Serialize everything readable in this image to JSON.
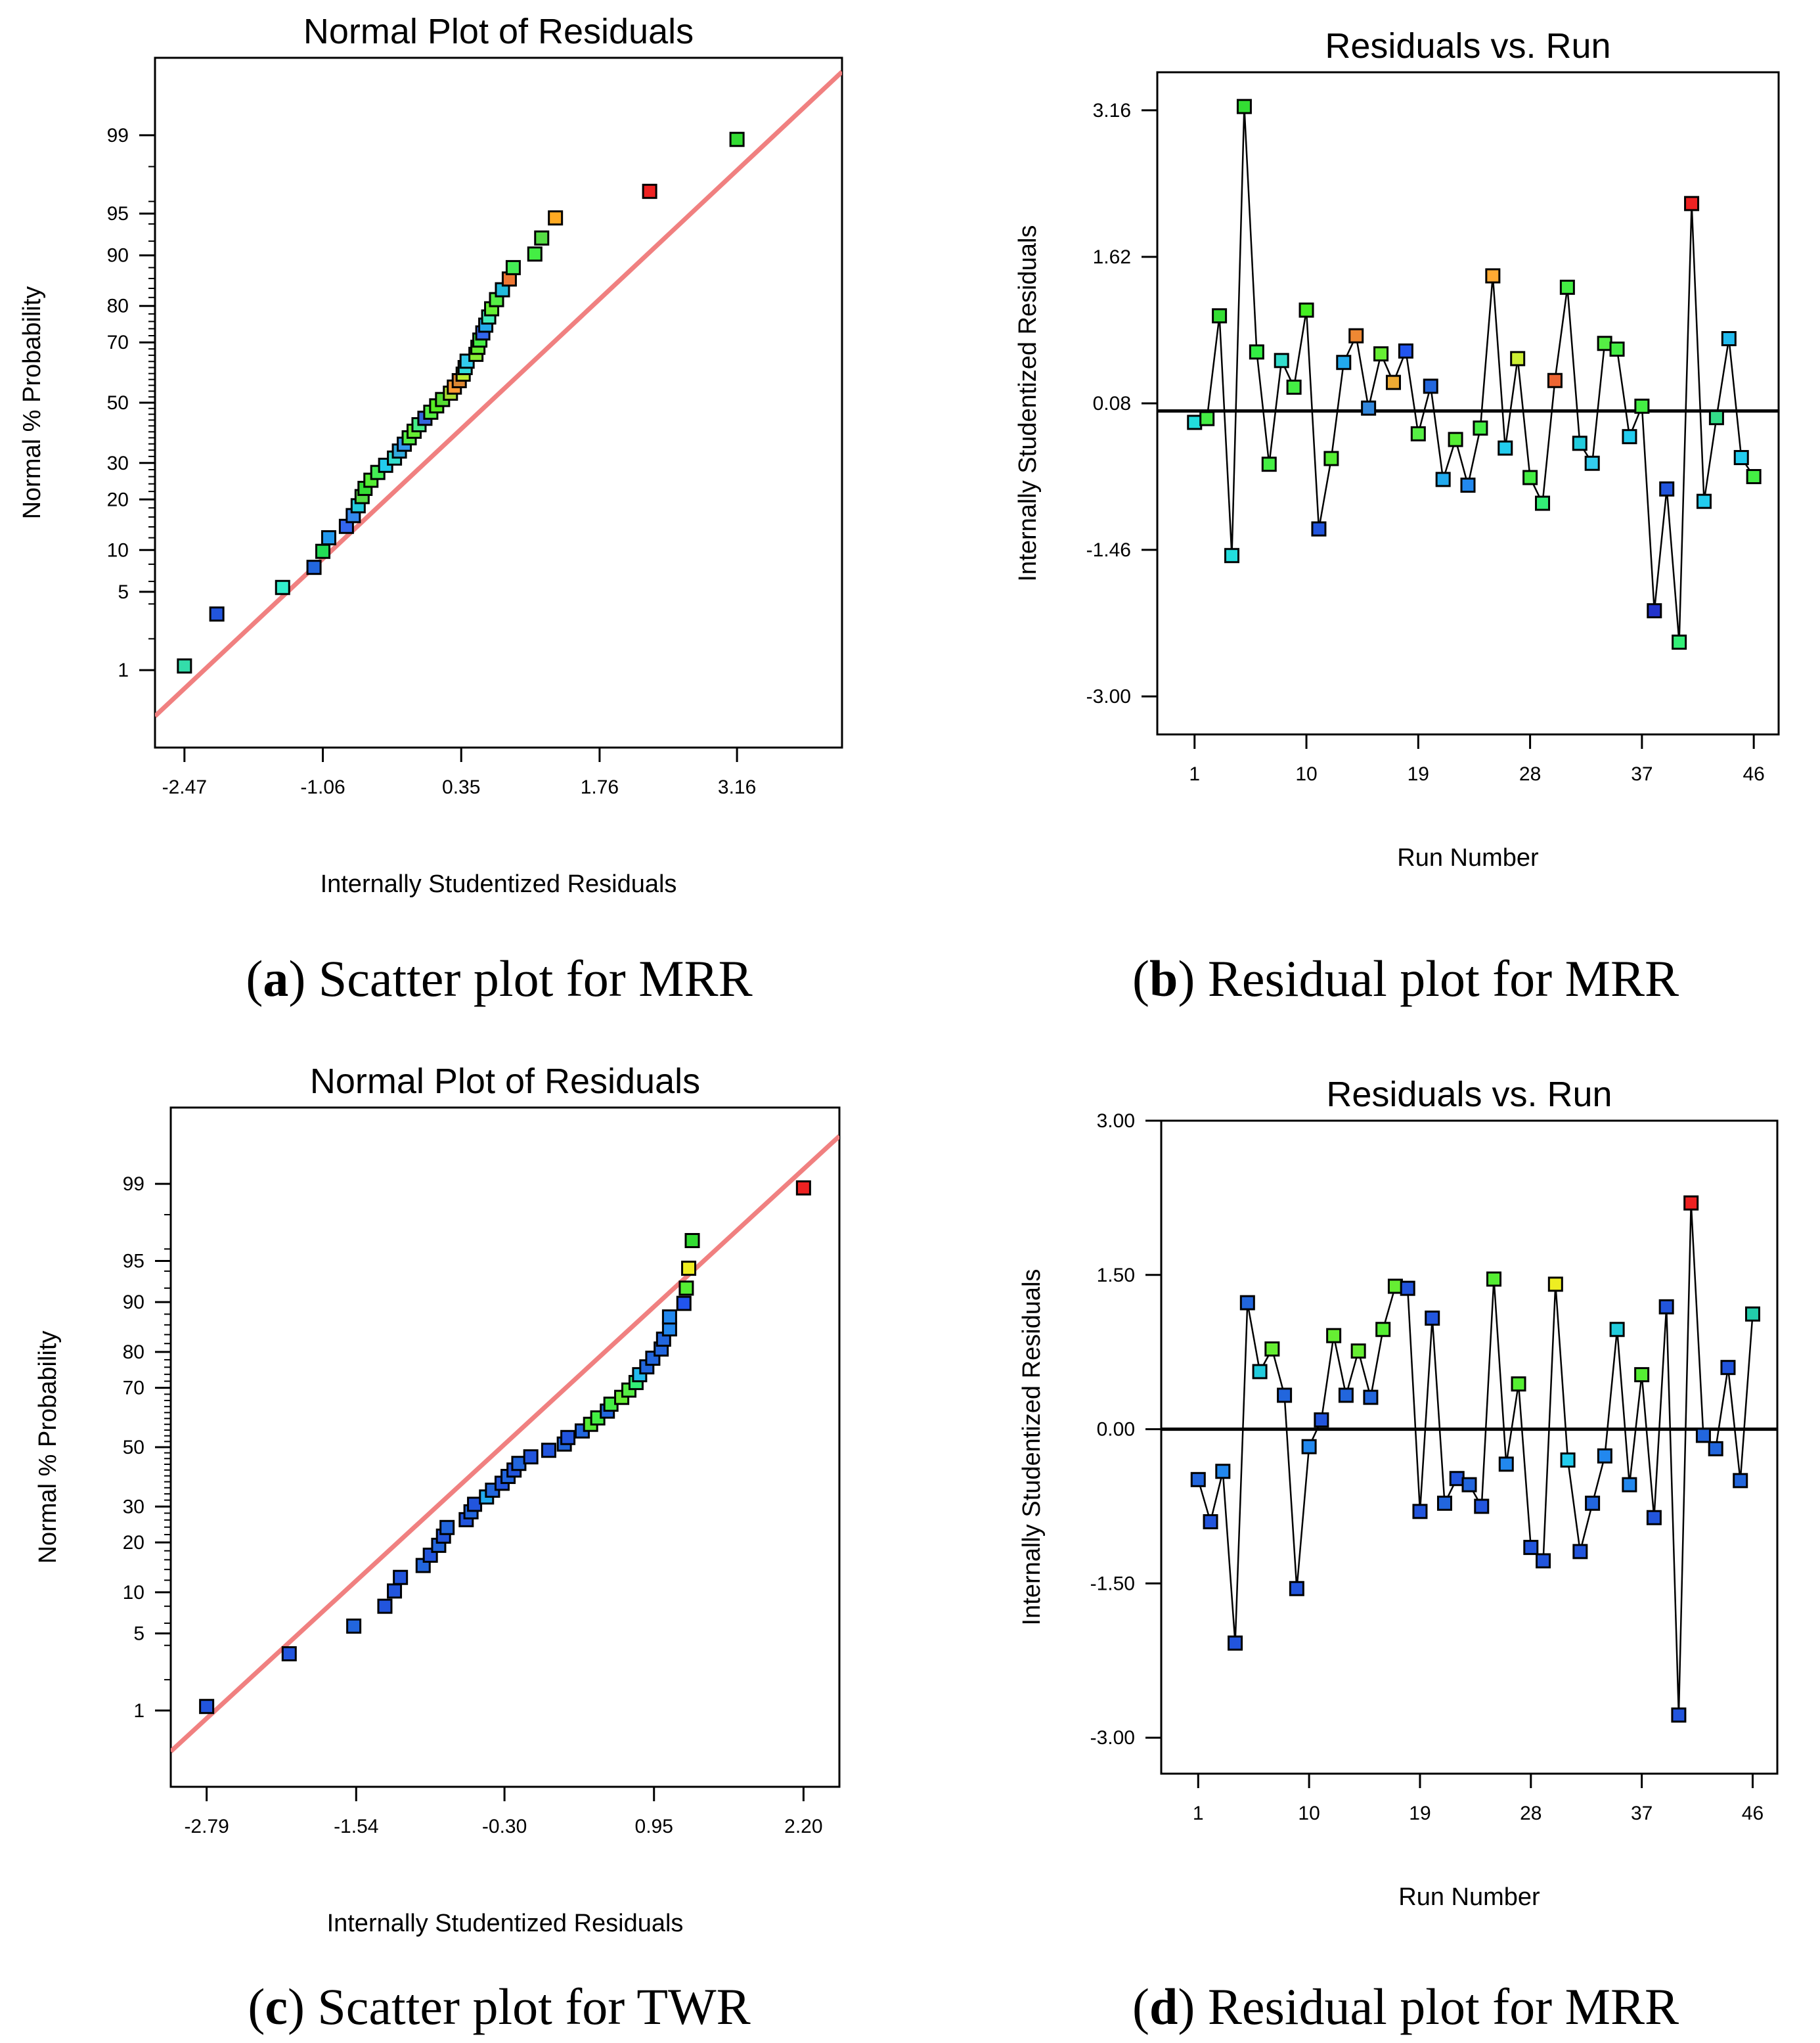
{
  "chart_data": [
    {
      "id": "a",
      "type": "scatter",
      "title": "Normal Plot of Residuals",
      "xlabel": "Internally Studentized Residuals",
      "ylabel": "Normal % Probability",
      "xlim": [
        -2.77,
        4.23
      ],
      "yticks": [
        1,
        5,
        10,
        20,
        30,
        50,
        70,
        80,
        90,
        95,
        99
      ],
      "xticks": [
        "-2.47",
        "-1.06",
        "0.35",
        "1.76",
        "3.16"
      ],
      "x": [
        -2.47,
        -2.14,
        -1.47,
        -1.15,
        -1.06,
        -1.0,
        -0.82,
        -0.75,
        -0.7,
        -0.66,
        -0.63,
        -0.57,
        -0.5,
        -0.42,
        -0.33,
        -0.28,
        -0.23,
        -0.18,
        -0.13,
        -0.08,
        -0.02,
        0.04,
        0.1,
        0.16,
        0.24,
        0.28,
        0.33,
        0.37,
        0.39,
        0.41,
        0.5,
        0.52,
        0.54,
        0.57,
        0.6,
        0.63,
        0.66,
        0.71,
        0.77,
        0.84,
        0.88,
        1.1,
        1.17,
        1.31,
        2.27,
        3.16
      ],
      "p": [
        1.1,
        3.3,
        5.4,
        7.6,
        9.8,
        12.0,
        14.1,
        16.3,
        18.5,
        20.7,
        22.8,
        25.0,
        27.2,
        29.3,
        31.5,
        33.7,
        35.9,
        38.0,
        40.2,
        42.4,
        44.6,
        46.7,
        48.9,
        51.1,
        53.3,
        55.4,
        57.6,
        59.8,
        62.0,
        64.1,
        66.3,
        68.5,
        70.7,
        72.8,
        75.0,
        77.2,
        79.3,
        81.5,
        83.7,
        85.9,
        88.0,
        90.2,
        92.4,
        94.6,
        96.7,
        98.9
      ],
      "colors": [
        "#33ddaa",
        "#2255dd",
        "#33eecc",
        "#2266dd",
        "#22dd55",
        "#2299ee",
        "#3366ee",
        "#3388ee",
        "#22ccdd",
        "#55dd44",
        "#33dd33",
        "#55ee33",
        "#44ee55",
        "#22ccee",
        "#33ddcc",
        "#33aadd",
        "#3399ee",
        "#55ee44",
        "#66ee33",
        "#44ee88",
        "#3366dd",
        "#55ee44",
        "#55ee22",
        "#55dd33",
        "#aadd33",
        "#ff9933",
        "#dd8833",
        "#bbee33",
        "#33dddd",
        "#33ccee",
        "#88ee33",
        "#66ee33",
        "#44ee44",
        "#3366ee",
        "#22aaee",
        "#44eebb",
        "#66ee33",
        "#55ee44",
        "#22bbdd",
        "#ee7733",
        "#44ee55",
        "#44ee44",
        "#55dd44",
        "#ffaa22",
        "#ee2222",
        "#33dd33"
      ],
      "fit_line_points": [
        [
          -2.77,
          0.32
        ],
        [
          4.23,
          99.8
        ]
      ],
      "fit_line_color": "#f08080"
    },
    {
      "id": "b",
      "type": "line",
      "title": "Residuals vs. Run",
      "xlabel": "Run Number",
      "ylabel": "Internally Studentized Residuals",
      "xlim": [
        -2,
        48
      ],
      "ylim": [
        -3.4,
        3.56
      ],
      "yticks": [
        "3.16",
        "1.62",
        "0.08",
        "-1.46",
        "-3.00"
      ],
      "xticks": [
        "1",
        "10",
        "19",
        "28",
        "37",
        "46"
      ],
      "zero_line": 0,
      "x": [
        1,
        2,
        3,
        4,
        5,
        6,
        7,
        8,
        9,
        10,
        11,
        12,
        13,
        14,
        15,
        16,
        17,
        18,
        19,
        20,
        21,
        22,
        23,
        24,
        25,
        26,
        27,
        28,
        29,
        30,
        31,
        32,
        33,
        34,
        35,
        36,
        37,
        38,
        39,
        40,
        41,
        42,
        43,
        44,
        45,
        46
      ],
      "y": [
        -0.12,
        -0.08,
        1.0,
        -1.52,
        3.2,
        0.62,
        -0.56,
        0.53,
        0.25,
        1.06,
        -1.24,
        -0.5,
        0.51,
        0.79,
        0.03,
        0.6,
        0.3,
        0.63,
        -0.24,
        0.26,
        -0.72,
        -0.3,
        -0.78,
        -0.18,
        1.42,
        -0.39,
        0.55,
        -0.7,
        -0.97,
        0.32,
        1.3,
        -0.34,
        -0.55,
        0.71,
        0.65,
        -0.27,
        0.05,
        -2.1,
        -0.82,
        -2.43,
        2.18,
        -0.95,
        -0.07,
        0.76,
        -0.49,
        -0.69
      ],
      "colors": [
        "#22dddd",
        "#44ee44",
        "#33dd33",
        "#22dddd",
        "#33dd33",
        "#33ee44",
        "#44ee44",
        "#33ddcc",
        "#44ee44",
        "#44ee22",
        "#2255dd",
        "#55ee33",
        "#22aaee",
        "#ee8833",
        "#3388dd",
        "#66ee33",
        "#eeaa33",
        "#2255ee",
        "#55ee44",
        "#2266dd",
        "#22aaee",
        "#55ee33",
        "#2288ee",
        "#44ee44",
        "#ffaa33",
        "#22ccee",
        "#ccee33",
        "#44ee44",
        "#33ee77",
        "#ee6633",
        "#44ee44",
        "#22ccdd",
        "#33ccee",
        "#55ee44",
        "#44ee44",
        "#22ccee",
        "#44ee44",
        "#2233cc",
        "#2255dd",
        "#33ee77",
        "#ee2222",
        "#22ccee",
        "#33dd88",
        "#22bbee",
        "#22ccee",
        "#44ee44"
      ]
    },
    {
      "id": "c",
      "type": "scatter",
      "title": "Normal Plot of Residuals",
      "xlabel": "Internally Studentized Residuals",
      "ylabel": "Normal % Probability",
      "xlim": [
        -3.09,
        2.5
      ],
      "yticks": [
        1,
        5,
        10,
        20,
        30,
        50,
        70,
        80,
        90,
        95,
        99
      ],
      "xticks": [
        "-2.79",
        "-1.54",
        "-0.30",
        "0.95",
        "2.20"
      ],
      "x": [
        -2.79,
        -2.1,
        -1.56,
        -1.3,
        -1.22,
        -1.17,
        -0.98,
        -0.92,
        -0.85,
        -0.81,
        -0.78,
        -0.62,
        -0.58,
        -0.55,
        -0.45,
        -0.4,
        -0.32,
        -0.27,
        -0.22,
        -0.18,
        -0.08,
        0.07,
        0.2,
        0.23,
        0.35,
        0.42,
        0.48,
        0.56,
        0.59,
        0.68,
        0.74,
        0.8,
        0.83,
        0.89,
        0.94,
        1.01,
        1.03,
        1.08,
        1.08,
        1.2,
        1.22,
        1.24,
        1.27,
        2.2
      ],
      "p": [
        1.1,
        3.4,
        5.7,
        8.0,
        10.2,
        12.5,
        14.8,
        17.0,
        19.3,
        21.6,
        23.9,
        26.1,
        28.4,
        30.7,
        33.0,
        35.2,
        37.5,
        39.8,
        42.0,
        44.3,
        46.6,
        48.9,
        51.1,
        53.4,
        55.7,
        58.0,
        60.2,
        62.5,
        64.8,
        67.0,
        69.3,
        71.6,
        73.9,
        76.1,
        78.4,
        80.7,
        83.0,
        85.2,
        87.5,
        89.8,
        92.0,
        94.3,
        96.6,
        98.9
      ],
      "colors": [
        "#2255dd",
        "#2255dd",
        "#2266dd",
        "#2255dd",
        "#2255dd",
        "#2255dd",
        "#2266dd",
        "#2255dd",
        "#2266dd",
        "#2255dd",
        "#2266dd",
        "#2255dd",
        "#2266dd",
        "#2255dd",
        "#22aaee",
        "#2266dd",
        "#2255dd",
        "#2266dd",
        "#2255dd",
        "#2266dd",
        "#2255dd",
        "#2255dd",
        "#2266dd",
        "#2255dd",
        "#2266dd",
        "#55ee33",
        "#44ee44",
        "#2266dd",
        "#44ee44",
        "#66ee33",
        "#55ee44",
        "#33ee77",
        "#22bbee",
        "#2266dd",
        "#2266dd",
        "#2266dd",
        "#2266dd",
        "#2288ee",
        "#2288ee",
        "#2255ee",
        "#55ee33",
        "#eeee22",
        "#33dd33",
        "#ee2222"
      ],
      "fit_line_points": [
        [
          -3.09,
          0.36
        ],
        [
          2.5,
          99.7
        ]
      ],
      "fit_line_color": "#f08080"
    },
    {
      "id": "d",
      "type": "line",
      "title": "Residuals vs. Run",
      "xlabel": "Run Number",
      "ylabel": "Internally Studentized Residuals",
      "xlim": [
        -2,
        48
      ],
      "ylim": [
        -3.35,
        3.0
      ],
      "yticks": [
        "3.00",
        "1.50",
        "0.00",
        "-1.50",
        "-3.00"
      ],
      "xticks": [
        "1",
        "10",
        "19",
        "28",
        "37",
        "46"
      ],
      "zero_line": 0,
      "x": [
        1,
        2,
        3,
        4,
        5,
        6,
        7,
        8,
        9,
        10,
        11,
        12,
        13,
        14,
        15,
        16,
        17,
        18,
        19,
        20,
        21,
        22,
        23,
        24,
        25,
        26,
        27,
        28,
        29,
        30,
        31,
        32,
        33,
        34,
        35,
        36,
        37,
        38,
        39,
        40,
        41,
        42,
        43,
        44,
        45,
        46
      ],
      "y": [
        -0.49,
        -0.9,
        -0.41,
        -2.08,
        1.23,
        0.56,
        0.78,
        0.33,
        -1.55,
        -0.17,
        0.09,
        0.91,
        0.33,
        0.76,
        0.31,
        0.97,
        1.39,
        1.37,
        -0.8,
        1.08,
        -0.72,
        -0.48,
        -0.54,
        -0.75,
        1.46,
        -0.34,
        0.44,
        -1.15,
        -1.28,
        1.41,
        -0.3,
        -1.19,
        -0.72,
        -0.26,
        0.97,
        -0.54,
        0.53,
        -0.86,
        1.19,
        -2.78,
        2.2,
        -0.06,
        -0.19,
        0.6,
        -0.5,
        1.12
      ],
      "colors": [
        "#2266dd",
        "#2255dd",
        "#2288ee",
        "#2255dd",
        "#2266dd",
        "#22ccdd",
        "#66ee33",
        "#2266dd",
        "#2255dd",
        "#2288ee",
        "#2255dd",
        "#66ee33",
        "#2266dd",
        "#66ee33",
        "#2266dd",
        "#55ee33",
        "#66ee33",
        "#2255dd",
        "#2255dd",
        "#2255dd",
        "#2266dd",
        "#2255dd",
        "#2266dd",
        "#2255dd",
        "#55ee33",
        "#2288ee",
        "#55ee33",
        "#2255dd",
        "#2255dd",
        "#eeee22",
        "#22ccee",
        "#2255dd",
        "#2266dd",
        "#2288ee",
        "#22ccdd",
        "#2288ee",
        "#55ee33",
        "#2255dd",
        "#2255dd",
        "#2255dd",
        "#ee2222",
        "#2266dd",
        "#2266dd",
        "#2255dd",
        "#2266dd",
        "#22ccaa"
      ]
    }
  ],
  "captions": {
    "a": {
      "letter": "a",
      "text": " Scatter plot for MRR"
    },
    "b": {
      "letter": "b",
      "text": " Residual plot for MRR"
    },
    "c": {
      "letter": "c",
      "text": " Scatter plot for TWR"
    },
    "d": {
      "letter": "d",
      "text": " Residual plot for MRR"
    }
  }
}
